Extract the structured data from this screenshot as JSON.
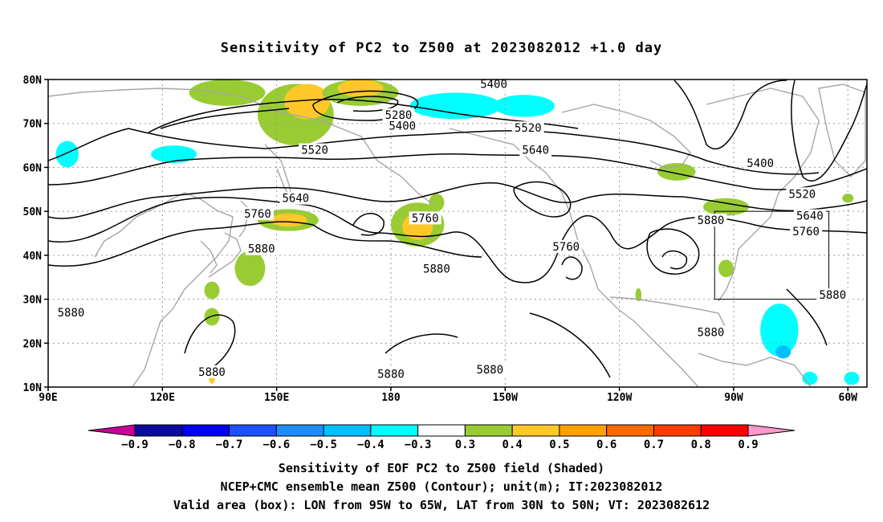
{
  "title": "Sensitivity of PC2 to Z500 at 2023082012 +1.0 day",
  "map": {
    "lat_ticks": [
      "80N",
      "70N",
      "60N",
      "50N",
      "40N",
      "30N",
      "20N",
      "10N"
    ],
    "lon_ticks": [
      "90E",
      "120E",
      "150E",
      "180",
      "150W",
      "120W",
      "90W",
      "60W"
    ],
    "lon_range_deg_east": [
      90,
      305
    ],
    "lat_range": [
      10,
      80
    ],
    "grid": true,
    "valid_box": {
      "lon_west": -95,
      "lon_east": -65,
      "lat_south": 30,
      "lat_north": 50
    },
    "contour_labels": [
      {
        "text": "5400",
        "lon": -153,
        "lat": 79
      },
      {
        "text": "5280",
        "lon": -178,
        "lat": 72
      },
      {
        "text": "5400",
        "lon": -177,
        "lat": 69.5
      },
      {
        "text": "5520",
        "lon": -144,
        "lat": 69
      },
      {
        "text": "5520",
        "lon": 160,
        "lat": 64
      },
      {
        "text": "5640",
        "lon": -142,
        "lat": 64
      },
      {
        "text": "5400",
        "lon": -83,
        "lat": 61
      },
      {
        "text": "5640",
        "lon": 155,
        "lat": 53
      },
      {
        "text": "5520",
        "lon": -72,
        "lat": 54
      },
      {
        "text": "5760",
        "lon": 145,
        "lat": 49.5
      },
      {
        "text": "5760",
        "lon": -171,
        "lat": 48.5
      },
      {
        "text": "5640",
        "lon": -70,
        "lat": 49
      },
      {
        "text": "5880",
        "lon": -96,
        "lat": 48
      },
      {
        "text": "5760",
        "lon": -134,
        "lat": 42
      },
      {
        "text": "5760",
        "lon": -71,
        "lat": 45.5
      },
      {
        "text": "5880",
        "lon": 146,
        "lat": 41.5
      },
      {
        "text": "5880",
        "lon": -168,
        "lat": 37
      },
      {
        "text": "5880",
        "lon": -64,
        "lat": 31
      },
      {
        "text": "5880",
        "lon": 96,
        "lat": 27
      },
      {
        "text": "5880",
        "lon": -96,
        "lat": 22.5
      },
      {
        "text": "5880",
        "lon": -154,
        "lat": 14
      },
      {
        "text": "5880",
        "lon": -180,
        "lat": 13
      },
      {
        "text": "5880",
        "lon": 133,
        "lat": 13.5
      }
    ]
  },
  "colorbar": {
    "labels": [
      "−0.9",
      "−0.8",
      "−0.7",
      "−0.6",
      "−0.5",
      "−0.4",
      "−0.3",
      "0.3",
      "0.4",
      "0.5",
      "0.6",
      "0.7",
      "0.8",
      "0.9"
    ],
    "colors": [
      "#0b0b9e",
      "#0000f0",
      "#1e50ff",
      "#1e8cff",
      "#00c0ff",
      "#00ffff",
      "#ffffff",
      "#99cc33",
      "#ffc828",
      "#ffa000",
      "#ff6a00",
      "#ff3c00",
      "#ff0000"
    ],
    "under_color": "#cc0099",
    "over_color": "#ff99cc"
  },
  "caption": {
    "line1": "Sensitivity of EOF PC2 to Z500 field (Shaded)",
    "line2": "NCEP+CMC ensemble mean Z500 (Contour); unit(m); IT:2023082012",
    "line3": "Valid area (box): LON from 95W to 65W, LAT from 30N to 50N; VT: 2023082612"
  },
  "shading_patches": [
    {
      "color": "#99cc33",
      "lon": 137,
      "lat": 77,
      "rx": 10,
      "ry": 3
    },
    {
      "color": "#99cc33",
      "lon": 155,
      "lat": 72,
      "rx": 10,
      "ry": 7
    },
    {
      "color": "#ffc828",
      "lon": 158,
      "lat": 75,
      "rx": 6,
      "ry": 4
    },
    {
      "color": "#99cc33",
      "lon": 172,
      "lat": 77,
      "rx": 10,
      "ry": 3
    },
    {
      "color": "#ffc828",
      "lon": 172,
      "lat": 78,
      "rx": 6,
      "ry": 2
    },
    {
      "color": "#00ffff",
      "lon": -163,
      "lat": 74,
      "rx": 12,
      "ry": 3
    },
    {
      "color": "#00ffff",
      "lon": -145,
      "lat": 74,
      "rx": 8,
      "ry": 2.5
    },
    {
      "color": "#00ffff",
      "lon": 123,
      "lat": 63,
      "rx": 6,
      "ry": 2
    },
    {
      "color": "#00ffff",
      "lon": 95,
      "lat": 63,
      "rx": 3,
      "ry": 3
    },
    {
      "color": "#99cc33",
      "lon": 153,
      "lat": 48,
      "rx": 8,
      "ry": 2.5
    },
    {
      "color": "#ffc828",
      "lon": 153,
      "lat": 48,
      "rx": 5,
      "ry": 1.5
    },
    {
      "color": "#99cc33",
      "lon": -173,
      "lat": 47,
      "rx": 7,
      "ry": 5
    },
    {
      "color": "#ffc828",
      "lon": -173,
      "lat": 46.5,
      "rx": 4,
      "ry": 3
    },
    {
      "color": "#99cc33",
      "lon": -168,
      "lat": 52,
      "rx": 2,
      "ry": 2
    },
    {
      "color": "#99cc33",
      "lon": 143,
      "lat": 37,
      "rx": 4,
      "ry": 4
    },
    {
      "color": "#99cc33",
      "lon": 133,
      "lat": 32,
      "rx": 2,
      "ry": 2
    },
    {
      "color": "#99cc33",
      "lon": 133,
      "lat": 26,
      "rx": 2,
      "ry": 2
    },
    {
      "color": "#ffc828",
      "lon": 133,
      "lat": 12,
      "rx": 0.8,
      "ry": 1.2
    },
    {
      "color": "#99cc33",
      "lon": -105,
      "lat": 59,
      "rx": 5,
      "ry": 2
    },
    {
      "color": "#99cc33",
      "lon": -92,
      "lat": 51,
      "rx": 6,
      "ry": 2
    },
    {
      "color": "#99cc33",
      "lon": -92,
      "lat": 37,
      "rx": 2,
      "ry": 2
    },
    {
      "color": "#00ffff",
      "lon": -78,
      "lat": 23,
      "rx": 5,
      "ry": 6
    },
    {
      "color": "#00c0ff",
      "lon": -77,
      "lat": 18,
      "rx": 2,
      "ry": 1.5
    },
    {
      "color": "#00ffff",
      "lon": -70,
      "lat": 12,
      "rx": 2,
      "ry": 1.5
    },
    {
      "color": "#00ffff",
      "lon": -59,
      "lat": 12,
      "rx": 2,
      "ry": 1.5
    },
    {
      "color": "#99cc33",
      "lon": -60,
      "lat": 53,
      "rx": 1.5,
      "ry": 1
    },
    {
      "color": "#99cc33",
      "lon": -115,
      "lat": 31,
      "rx": 0.8,
      "ry": 1.5
    }
  ]
}
